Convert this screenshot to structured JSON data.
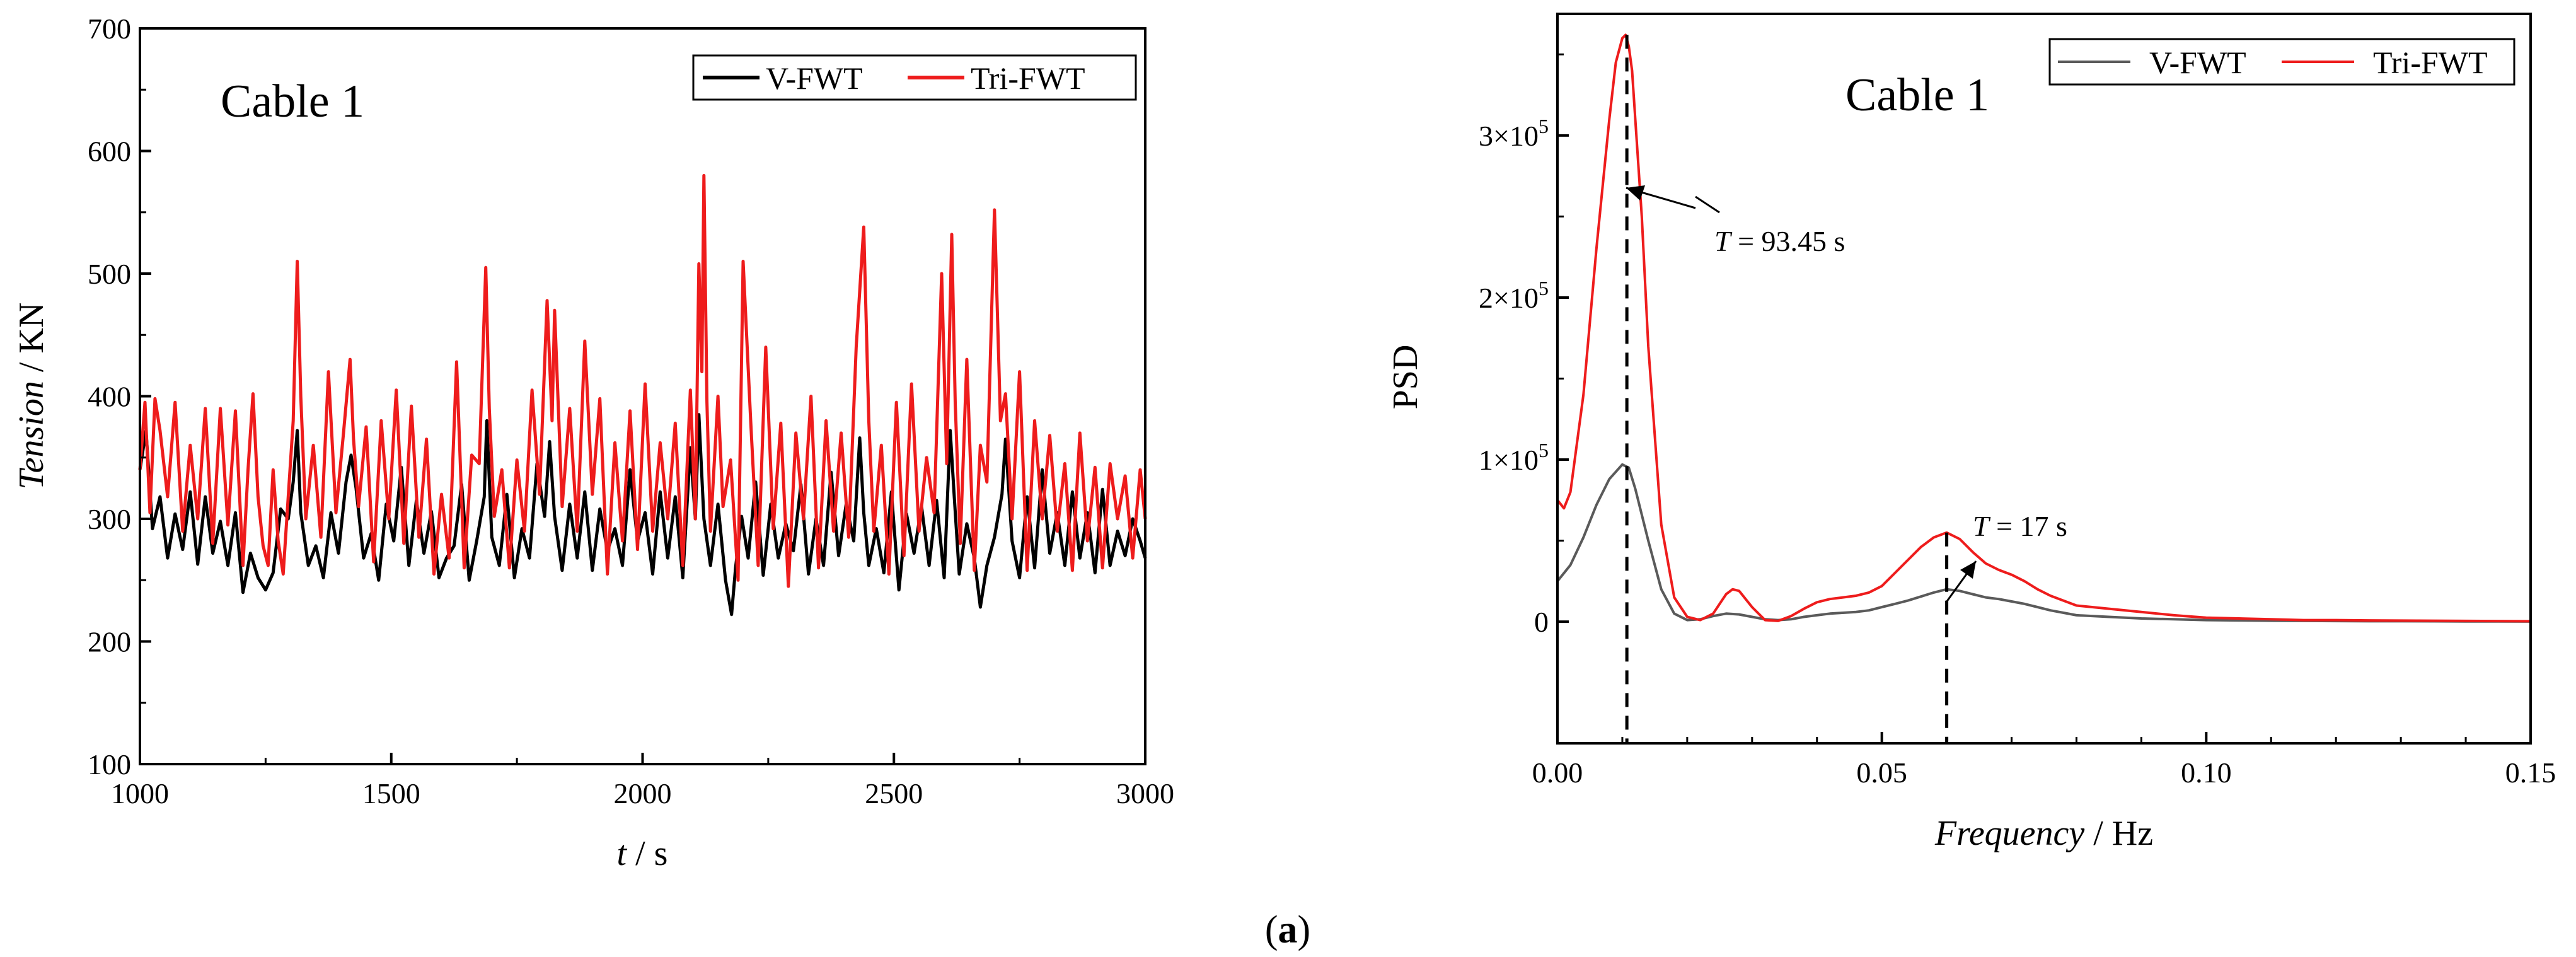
{
  "caption": {
    "label": "a",
    "open": "(",
    "close": ")"
  },
  "chart_data": [
    {
      "type": "line",
      "title": "Cable 1",
      "xlabel_italic": "t",
      "xlabel_unit": " / s",
      "ylabel_italic": "Tension",
      "ylabel_unit": " / KN",
      "xlim": [
        1000,
        3000
      ],
      "ylim": [
        100,
        700
      ],
      "xticks": [
        1000,
        1500,
        2000,
        2500,
        3000
      ],
      "yticks": [
        100,
        200,
        300,
        400,
        500,
        600,
        700
      ],
      "legend_position": "top-right",
      "series": [
        {
          "name": "V-FWT",
          "color": "#000000",
          "x": [
            1000,
            1012,
            1025,
            1040,
            1055,
            1070,
            1085,
            1100,
            1115,
            1130,
            1145,
            1160,
            1175,
            1190,
            1205,
            1220,
            1235,
            1250,
            1265,
            1280,
            1295,
            1305,
            1313,
            1320,
            1335,
            1350,
            1365,
            1380,
            1395,
            1410,
            1420,
            1430,
            1445,
            1460,
            1475,
            1490,
            1505,
            1520,
            1535,
            1550,
            1565,
            1580,
            1595,
            1610,
            1625,
            1640,
            1655,
            1670,
            1685,
            1690,
            1700,
            1715,
            1730,
            1745,
            1760,
            1775,
            1790,
            1805,
            1815,
            1825,
            1840,
            1855,
            1870,
            1885,
            1900,
            1915,
            1930,
            1945,
            1960,
            1975,
            1990,
            2005,
            2020,
            2035,
            2050,
            2065,
            2080,
            2095,
            2105,
            2112,
            2122,
            2135,
            2150,
            2165,
            2177,
            2185,
            2197,
            2210,
            2225,
            2240,
            2255,
            2270,
            2285,
            2300,
            2315,
            2330,
            2345,
            2360,
            2375,
            2390,
            2405,
            2420,
            2432,
            2440,
            2450,
            2465,
            2480,
            2495,
            2510,
            2525,
            2540,
            2555,
            2570,
            2585,
            2600,
            2612,
            2620,
            2630,
            2645,
            2660,
            2672,
            2685,
            2700,
            2715,
            2722,
            2735,
            2750,
            2765,
            2780,
            2795,
            2810,
            2825,
            2840,
            2855,
            2870,
            2885,
            2900,
            2915,
            2930,
            2945,
            2960,
            2975,
            2990,
            3000
          ],
          "y": [
            340,
            372,
            292,
            318,
            268,
            304,
            275,
            322,
            263,
            318,
            272,
            298,
            262,
            305,
            240,
            272,
            252,
            242,
            256,
            308,
            300,
            330,
            372,
            305,
            262,
            278,
            252,
            305,
            272,
            330,
            352,
            325,
            268,
            288,
            250,
            312,
            282,
            342,
            262,
            315,
            272,
            306,
            252,
            268,
            278,
            328,
            250,
            282,
            318,
            380,
            285,
            262,
            320,
            252,
            292,
            268,
            345,
            302,
            363,
            302,
            258,
            312,
            268,
            322,
            258,
            308,
            274,
            292,
            262,
            340,
            282,
            305,
            255,
            322,
            268,
            318,
            252,
            358,
            300,
            385,
            300,
            262,
            312,
            250,
            222,
            260,
            302,
            268,
            330,
            254,
            312,
            268,
            296,
            274,
            328,
            255,
            300,
            262,
            338,
            270,
            312,
            282,
            366,
            305,
            262,
            292,
            256,
            322,
            242,
            304,
            272,
            310,
            262,
            315,
            252,
            372,
            318,
            255,
            296,
            268,
            228,
            262,
            285,
            320,
            365,
            282,
            252,
            318,
            260,
            340,
            272,
            305,
            262,
            322,
            268,
            305,
            256,
            324,
            262,
            290,
            270,
            300,
            282,
            268
          ],
          "marker": "none"
        },
        {
          "name": "Tri-FWT",
          "color": "#ee1c1c",
          "x": [
            1000,
            1010,
            1020,
            1030,
            1040,
            1055,
            1070,
            1085,
            1100,
            1115,
            1130,
            1145,
            1160,
            1175,
            1190,
            1205,
            1215,
            1225,
            1235,
            1245,
            1255,
            1265,
            1275,
            1285,
            1295,
            1305,
            1313,
            1320,
            1330,
            1345,
            1360,
            1375,
            1390,
            1405,
            1418,
            1425,
            1435,
            1450,
            1465,
            1480,
            1495,
            1510,
            1525,
            1540,
            1555,
            1570,
            1585,
            1600,
            1615,
            1630,
            1645,
            1660,
            1675,
            1688,
            1695,
            1705,
            1720,
            1735,
            1750,
            1765,
            1780,
            1795,
            1810,
            1820,
            1825,
            1840,
            1855,
            1870,
            1885,
            1900,
            1915,
            1930,
            1945,
            1960,
            1975,
            1990,
            2005,
            2020,
            2035,
            2050,
            2065,
            2080,
            2095,
            2105,
            2112,
            2118,
            2122,
            2128,
            2135,
            2150,
            2160,
            2175,
            2190,
            2200,
            2215,
            2230,
            2245,
            2260,
            2275,
            2290,
            2305,
            2320,
            2335,
            2350,
            2365,
            2380,
            2395,
            2410,
            2425,
            2440,
            2450,
            2460,
            2475,
            2490,
            2505,
            2520,
            2535,
            2550,
            2565,
            2580,
            2595,
            2605,
            2615,
            2622,
            2632,
            2645,
            2660,
            2672,
            2685,
            2700,
            2712,
            2722,
            2735,
            2750,
            2765,
            2780,
            2795,
            2810,
            2825,
            2840,
            2855,
            2870,
            2885,
            2900,
            2915,
            2930,
            2945,
            2960,
            2975,
            2990,
            3000
          ],
          "y": [
            340,
            395,
            305,
            398,
            372,
            318,
            395,
            290,
            360,
            300,
            390,
            280,
            390,
            295,
            388,
            262,
            340,
            402,
            318,
            278,
            262,
            340,
            282,
            255,
            318,
            380,
            510,
            400,
            300,
            360,
            285,
            420,
            305,
            370,
            430,
            365,
            310,
            375,
            265,
            380,
            300,
            405,
            280,
            392,
            285,
            365,
            255,
            320,
            268,
            428,
            260,
            352,
            345,
            505,
            390,
            302,
            340,
            260,
            348,
            290,
            405,
            320,
            478,
            380,
            470,
            310,
            390,
            290,
            445,
            320,
            398,
            255,
            362,
            282,
            388,
            275,
            410,
            290,
            362,
            300,
            378,
            262,
            405,
            300,
            508,
            420,
            580,
            395,
            290,
            400,
            310,
            348,
            250,
            510,
            380,
            262,
            440,
            292,
            378,
            245,
            370,
            300,
            400,
            260,
            380,
            290,
            370,
            285,
            440,
            538,
            380,
            290,
            360,
            255,
            395,
            270,
            410,
            290,
            350,
            305,
            500,
            345,
            532,
            395,
            280,
            430,
            258,
            360,
            330,
            552,
            380,
            402,
            300,
            420,
            258,
            380,
            300,
            368,
            290,
            345,
            258,
            370,
            282,
            342,
            260,
            345,
            300,
            335,
            268,
            340,
            300
          ]
        }
      ]
    },
    {
      "type": "line",
      "title": "Cable 1",
      "xlabel_italic": "Frequency",
      "xlabel_unit": " / Hz",
      "ylabel": "PSD",
      "xlim": [
        0.0,
        0.15
      ],
      "ylim": [
        -75000,
        375000
      ],
      "xticks": [
        0.0,
        0.05,
        0.1,
        0.15
      ],
      "xtick_labels": [
        "0.00",
        "0.05",
        "0.10",
        "0.15"
      ],
      "yticks": [
        0,
        100000,
        200000,
        300000
      ],
      "ytick_mantissa": [
        "",
        "1",
        "2",
        "3"
      ],
      "ytick_zero_label": "0",
      "ytick_base": "×10",
      "ytick_exponent": "5",
      "legend_position": "top-right",
      "series": [
        {
          "name": "V-FWT",
          "color": "#5a5a5a",
          "x": [
            0.0,
            0.002,
            0.004,
            0.006,
            0.008,
            0.01,
            0.011,
            0.012,
            0.014,
            0.016,
            0.018,
            0.02,
            0.022,
            0.024,
            0.026,
            0.028,
            0.03,
            0.032,
            0.034,
            0.036,
            0.038,
            0.04,
            0.042,
            0.044,
            0.046,
            0.048,
            0.05,
            0.052,
            0.054,
            0.056,
            0.058,
            0.06,
            0.062,
            0.064,
            0.066,
            0.068,
            0.07,
            0.072,
            0.074,
            0.076,
            0.078,
            0.08,
            0.085,
            0.09,
            0.095,
            0.1,
            0.105,
            0.11,
            0.115,
            0.12,
            0.125,
            0.13,
            0.135,
            0.14,
            0.145,
            0.15
          ],
          "y": [
            25000,
            35000,
            52000,
            72000,
            88000,
            97000,
            95000,
            82000,
            50000,
            20000,
            5000,
            1000,
            1500,
            3500,
            5000,
            4500,
            3000,
            1500,
            1000,
            1500,
            3000,
            4000,
            5000,
            5500,
            6000,
            7000,
            9000,
            11000,
            13000,
            15500,
            18000,
            20000,
            19000,
            17000,
            15000,
            14000,
            12500,
            11000,
            9000,
            7000,
            5500,
            4000,
            3000,
            2000,
            1500,
            1000,
            800,
            600,
            500,
            400,
            300,
            300,
            250,
            200,
            150,
            100
          ]
        },
        {
          "name": "Tri-FWT",
          "color": "#ee1c1c",
          "x": [
            0.0,
            0.001,
            0.002,
            0.004,
            0.006,
            0.008,
            0.009,
            0.01,
            0.0105,
            0.011,
            0.0115,
            0.012,
            0.013,
            0.014,
            0.016,
            0.018,
            0.02,
            0.022,
            0.024,
            0.026,
            0.027,
            0.028,
            0.03,
            0.032,
            0.034,
            0.036,
            0.038,
            0.04,
            0.042,
            0.044,
            0.046,
            0.048,
            0.05,
            0.052,
            0.054,
            0.056,
            0.058,
            0.06,
            0.062,
            0.064,
            0.066,
            0.068,
            0.07,
            0.072,
            0.074,
            0.076,
            0.078,
            0.08,
            0.085,
            0.09,
            0.095,
            0.1,
            0.105,
            0.11,
            0.115,
            0.12,
            0.125,
            0.13,
            0.135,
            0.14,
            0.145,
            0.15
          ],
          "y": [
            75000,
            70000,
            80000,
            140000,
            230000,
            310000,
            345000,
            360000,
            362000,
            355000,
            340000,
            310000,
            250000,
            170000,
            60000,
            15000,
            3000,
            1000,
            5000,
            17000,
            20000,
            19000,
            9000,
            1000,
            500,
            3500,
            8000,
            12000,
            14000,
            15000,
            16000,
            18000,
            22000,
            30000,
            38000,
            46000,
            52000,
            55000,
            51000,
            43000,
            36000,
            32000,
            29000,
            25000,
            20000,
            16000,
            13000,
            10000,
            8000,
            6000,
            4000,
            2500,
            2000,
            1500,
            1000,
            1000,
            800,
            700,
            600,
            500,
            400,
            300
          ]
        }
      ],
      "annotations": [
        {
          "italic": "T",
          "text": " = 93.45 s",
          "x": 0.0107,
          "y": 295000
        },
        {
          "italic": "T",
          "text": " = 17 s",
          "x": 0.06,
          "y": 55000
        }
      ],
      "reference_lines": [
        {
          "x": 0.0107,
          "y_top": 362000
        },
        {
          "x": 0.06,
          "y_top": 55000
        }
      ]
    }
  ]
}
